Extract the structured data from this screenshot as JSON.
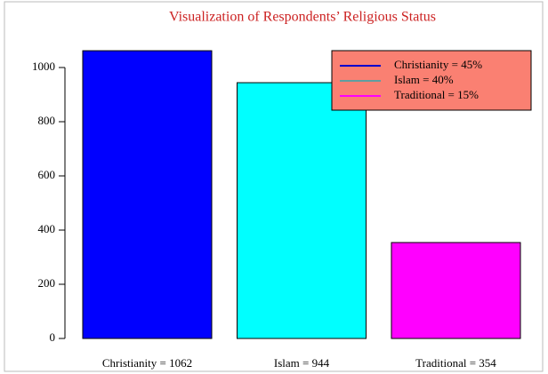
{
  "chart_data": {
    "type": "bar",
    "title": "Visualization of Respondents’ Religious Status",
    "categories": [
      "Christianity = 1062",
      "Islam = 944",
      "Traditional = 354"
    ],
    "values": [
      1062,
      944,
      354
    ],
    "colors": [
      "#0000ff",
      "#00ffff",
      "#ff00ff"
    ],
    "ylim": [
      0,
      1100
    ],
    "yticks": [
      0,
      200,
      400,
      600,
      800,
      1000
    ],
    "legend": {
      "position": "top-right",
      "background": "#fa8072",
      "labels": [
        "Christianity = 45%",
        "Islam = 40%",
        "Traditional = 15%"
      ],
      "colors": [
        "#0000cd",
        "#5f9ea0",
        "#ff00ff"
      ]
    }
  }
}
